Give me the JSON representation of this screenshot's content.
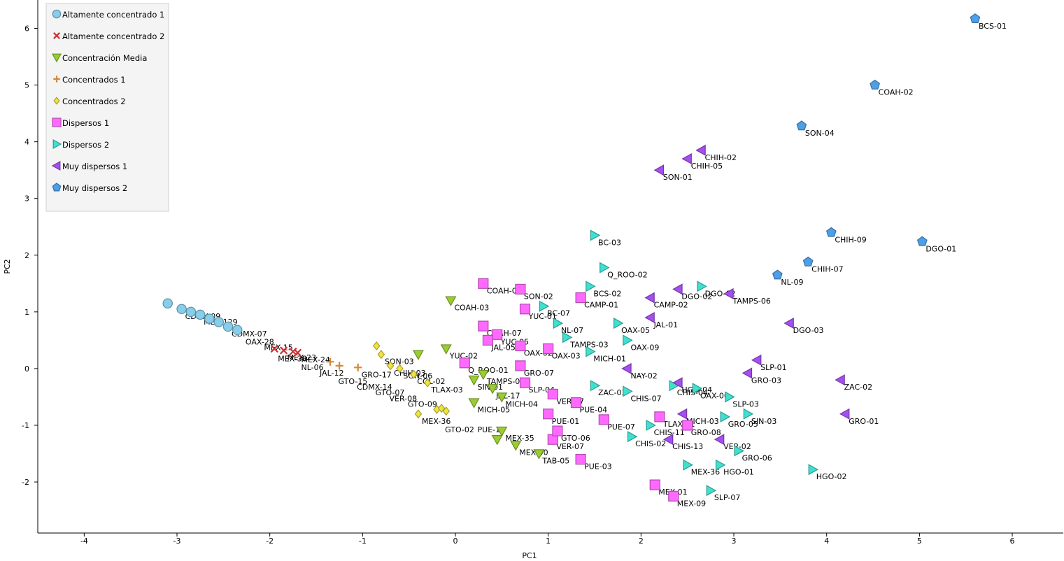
{
  "chart_data": {
    "type": "scatter",
    "xlabel": "PC1",
    "ylabel": "PC2",
    "xlim": [
      -4.5,
      6.55
    ],
    "ylim": [
      -2.9,
      6.5
    ],
    "xticks": [
      -4,
      -3,
      -2,
      -1,
      0,
      1,
      2,
      3,
      4,
      5,
      6
    ],
    "yticks": [
      -2,
      -1,
      0,
      1,
      2,
      3,
      4,
      5,
      6
    ],
    "grid": false,
    "legend_position": "top-left",
    "series": [
      {
        "name": "Altamente concentrado 1",
        "marker": "circle",
        "color": "#87ceeb",
        "points": [
          {
            "x": -3.1,
            "y": 1.15,
            "label": ""
          },
          {
            "x": -2.95,
            "y": 1.05,
            "label": "CDMX-09"
          },
          {
            "x": -2.85,
            "y": 1.0,
            "label": ""
          },
          {
            "x": -2.75,
            "y": 0.95,
            "label": "MEX-129"
          },
          {
            "x": -2.65,
            "y": 0.88,
            "label": ""
          },
          {
            "x": -2.55,
            "y": 0.82,
            "label": ""
          },
          {
            "x": -2.45,
            "y": 0.74,
            "label": "CDMX-07"
          },
          {
            "x": -2.35,
            "y": 0.68,
            "label": ""
          }
        ]
      },
      {
        "name": "Altamente concentrado 2",
        "marker": "x",
        "color": "#cc3333",
        "points": [
          {
            "x": -1.95,
            "y": 0.35,
            "label": ""
          },
          {
            "x": -1.85,
            "y": 0.32,
            "label": "MEX-23"
          },
          {
            "x": -1.75,
            "y": 0.3,
            "label": ""
          },
          {
            "x": -1.7,
            "y": 0.28,
            "label": "MEX-24"
          }
        ]
      },
      {
        "name": "Concentración Media",
        "marker": "triangle-down",
        "color": "#9acd32",
        "points": [
          {
            "x": -0.05,
            "y": 1.2,
            "label": "COAH-03"
          },
          {
            "x": -0.4,
            "y": 0.25,
            "label": ""
          },
          {
            "x": -0.1,
            "y": 0.35,
            "label": "YUC-02"
          },
          {
            "x": 0.3,
            "y": -0.1,
            "label": "TAMPS-05"
          },
          {
            "x": 0.2,
            "y": -0.2,
            "label": "SIN-01"
          },
          {
            "x": 0.4,
            "y": -0.35,
            "label": "JAL-17"
          },
          {
            "x": 0.5,
            "y": -0.5,
            "label": "MICH-04"
          },
          {
            "x": 0.2,
            "y": -0.6,
            "label": "MICH-05"
          },
          {
            "x": 0.5,
            "y": -1.1,
            "label": "MEX-35"
          },
          {
            "x": 0.65,
            "y": -1.35,
            "label": "MEX-40"
          },
          {
            "x": 0.9,
            "y": -1.5,
            "label": "TAB-05"
          },
          {
            "x": 0.45,
            "y": -1.25,
            "label": ""
          }
        ]
      },
      {
        "name": "Concentrados 1",
        "marker": "plus",
        "color": "#d2893a",
        "points": [
          {
            "x": -1.35,
            "y": 0.12,
            "label": ""
          },
          {
            "x": -1.25,
            "y": 0.05,
            "label": ""
          },
          {
            "x": -1.05,
            "y": 0.02,
            "label": "GRO-17"
          }
        ]
      },
      {
        "name": "Concentrados 2",
        "marker": "diamond",
        "color": "#f0e442",
        "points": [
          {
            "x": -0.85,
            "y": 0.4,
            "label": ""
          },
          {
            "x": -0.8,
            "y": 0.25,
            "label": "SON-03"
          },
          {
            "x": -0.7,
            "y": 0.05,
            "label": "CHIH-03"
          },
          {
            "x": -0.6,
            "y": 0.0,
            "label": "SON-06"
          },
          {
            "x": -0.45,
            "y": -0.1,
            "label": "COL-02"
          },
          {
            "x": -0.3,
            "y": -0.25,
            "label": "TLAX-03"
          },
          {
            "x": -0.4,
            "y": -0.8,
            "label": "MEX-36"
          },
          {
            "x": -0.2,
            "y": -0.72,
            "label": ""
          },
          {
            "x": -0.15,
            "y": -0.7,
            "label": ""
          },
          {
            "x": -0.1,
            "y": -0.75,
            "label": ""
          }
        ]
      },
      {
        "name": "Dispersos 1",
        "marker": "square",
        "color": "#ff69ff",
        "points": [
          {
            "x": 0.3,
            "y": 1.5,
            "label": "COAH-01"
          },
          {
            "x": 0.7,
            "y": 1.4,
            "label": "SON-02"
          },
          {
            "x": 0.75,
            "y": 1.05,
            "label": "YUC-01"
          },
          {
            "x": 1.35,
            "y": 1.25,
            "label": "CAMP-01"
          },
          {
            "x": 0.3,
            "y": 0.75,
            "label": "COAH-07"
          },
          {
            "x": 0.45,
            "y": 0.6,
            "label": "YUC-05"
          },
          {
            "x": 0.35,
            "y": 0.5,
            "label": "JAL-05"
          },
          {
            "x": 0.7,
            "y": 0.4,
            "label": "OAX-02"
          },
          {
            "x": 1.0,
            "y": 0.35,
            "label": "OAX-03"
          },
          {
            "x": 0.7,
            "y": 0.05,
            "label": "GRO-07"
          },
          {
            "x": 0.75,
            "y": -0.25,
            "label": "SLP-04"
          },
          {
            "x": 1.05,
            "y": -0.45,
            "label": "VER-17"
          },
          {
            "x": 1.3,
            "y": -0.6,
            "label": "PUE-04"
          },
          {
            "x": 1.0,
            "y": -0.8,
            "label": "PUE-01"
          },
          {
            "x": 1.6,
            "y": -0.9,
            "label": "PUE-07"
          },
          {
            "x": 1.05,
            "y": -1.25,
            "label": "VER-07"
          },
          {
            "x": 1.35,
            "y": -1.6,
            "label": "PUE-03"
          },
          {
            "x": 2.15,
            "y": -2.05,
            "label": "MEX-01"
          },
          {
            "x": 2.35,
            "y": -2.25,
            "label": "MEX-09"
          },
          {
            "x": 2.5,
            "y": -1.0,
            "label": "GRO-08"
          },
          {
            "x": 2.2,
            "y": -0.85,
            "label": "TLAX-01"
          },
          {
            "x": 0.1,
            "y": 0.1,
            "label": "Q_ROO-01"
          },
          {
            "x": 1.1,
            "y": -1.1,
            "label": "GTO-06"
          }
        ]
      },
      {
        "name": "Dispersos 2",
        "marker": "triangle-right",
        "color": "#40e0d0",
        "points": [
          {
            "x": 1.5,
            "y": 2.35,
            "label": "BC-03"
          },
          {
            "x": 1.6,
            "y": 1.78,
            "label": "Q_ROO-02"
          },
          {
            "x": 1.45,
            "y": 1.45,
            "label": "BCS-02"
          },
          {
            "x": 0.95,
            "y": 1.1,
            "label": "BC-07"
          },
          {
            "x": 1.1,
            "y": 0.8,
            "label": "NL-07"
          },
          {
            "x": 1.2,
            "y": 0.55,
            "label": "TAMPS-03"
          },
          {
            "x": 1.75,
            "y": 0.8,
            "label": "OAX-05"
          },
          {
            "x": 1.85,
            "y": 0.5,
            "label": "OAX-09"
          },
          {
            "x": 1.45,
            "y": 0.3,
            "label": "MICH-01"
          },
          {
            "x": 1.5,
            "y": -0.3,
            "label": "ZAC-03"
          },
          {
            "x": 1.85,
            "y": -0.4,
            "label": "CHIS-07"
          },
          {
            "x": 2.35,
            "y": -0.3,
            "label": "CHIS-04"
          },
          {
            "x": 2.6,
            "y": -0.35,
            "label": "OAX-06"
          },
          {
            "x": 2.95,
            "y": -0.5,
            "label": "SLP-03"
          },
          {
            "x": 3.15,
            "y": -0.8,
            "label": "SIN-03"
          },
          {
            "x": 2.9,
            "y": -0.85,
            "label": "GRO-05"
          },
          {
            "x": 1.9,
            "y": -1.2,
            "label": "CHIS-02"
          },
          {
            "x": 3.05,
            "y": -1.45,
            "label": "GRO-06"
          },
          {
            "x": 2.5,
            "y": -1.7,
            "label": "MEX-36"
          },
          {
            "x": 2.85,
            "y": -1.7,
            "label": "HGO-01"
          },
          {
            "x": 3.85,
            "y": -1.78,
            "label": "HGO-02"
          },
          {
            "x": 2.75,
            "y": -2.15,
            "label": "SLP-07"
          },
          {
            "x": 2.65,
            "y": 1.45,
            "label": "DGO-02"
          },
          {
            "x": 2.1,
            "y": -1.0,
            "label": "CHIS-11"
          }
        ]
      },
      {
        "name": "Muy dispersos 1",
        "marker": "triangle-left",
        "color": "#a64ff0",
        "points": [
          {
            "x": 2.65,
            "y": 3.85,
            "label": "CHIH-02"
          },
          {
            "x": 2.5,
            "y": 3.7,
            "label": "CHIH-05"
          },
          {
            "x": 2.2,
            "y": 3.5,
            "label": "SON-01"
          },
          {
            "x": 2.1,
            "y": 1.25,
            "label": "CAMP-02"
          },
          {
            "x": 2.4,
            "y": 1.4,
            "label": "DGO-02"
          },
          {
            "x": 2.95,
            "y": 1.32,
            "label": "TAMPS-06"
          },
          {
            "x": 2.1,
            "y": 0.9,
            "label": "JAL-01"
          },
          {
            "x": 3.6,
            "y": 0.8,
            "label": "DGO-03"
          },
          {
            "x": 3.25,
            "y": 0.15,
            "label": "SLP-01"
          },
          {
            "x": 3.15,
            "y": -0.08,
            "label": "GRO-03"
          },
          {
            "x": 4.15,
            "y": -0.2,
            "label": "ZAC-02"
          },
          {
            "x": 4.2,
            "y": -0.8,
            "label": "GRO-01"
          },
          {
            "x": 2.45,
            "y": -0.8,
            "label": "MICH-03"
          },
          {
            "x": 2.3,
            "y": -1.25,
            "label": "CHIS-13"
          },
          {
            "x": 2.85,
            "y": -1.25,
            "label": "VER-02"
          },
          {
            "x": 1.85,
            "y": 0.0,
            "label": "NAY-02"
          },
          {
            "x": 2.4,
            "y": -0.25,
            "label": "HGO-04"
          }
        ]
      },
      {
        "name": "Muy dispersos 2",
        "marker": "pentagon",
        "color": "#4d9fe8",
        "points": [
          {
            "x": 5.6,
            "y": 6.17,
            "label": "BCS-01"
          },
          {
            "x": 4.52,
            "y": 5.0,
            "label": "COAH-02"
          },
          {
            "x": 3.73,
            "y": 4.28,
            "label": "SON-04"
          },
          {
            "x": 4.05,
            "y": 2.4,
            "label": "CHIH-09"
          },
          {
            "x": 5.03,
            "y": 2.24,
            "label": "DGO-01"
          },
          {
            "x": 3.8,
            "y": 1.88,
            "label": "CHIH-07"
          },
          {
            "x": 3.47,
            "y": 1.65,
            "label": "NL-09"
          }
        ]
      },
      {
        "name": "",
        "marker": "none",
        "color": "#000000",
        "points": [
          {
            "x": -2.3,
            "y": 0.6,
            "label": "OAX-28"
          },
          {
            "x": -2.1,
            "y": 0.5,
            "label": "MEX-15"
          },
          {
            "x": -1.95,
            "y": 0.3,
            "label": "MEX-38"
          },
          {
            "x": -1.7,
            "y": 0.15,
            "label": "NL-06"
          },
          {
            "x": -1.5,
            "y": 0.05,
            "label": "JAL-12"
          },
          {
            "x": -1.3,
            "y": -0.1,
            "label": "GTO-15"
          },
          {
            "x": -1.1,
            "y": -0.2,
            "label": "CDMX-14"
          },
          {
            "x": -0.9,
            "y": -0.3,
            "label": "GTO-07"
          },
          {
            "x": -0.75,
            "y": -0.4,
            "label": "VER-08"
          },
          {
            "x": -0.55,
            "y": -0.5,
            "label": "GTO-09"
          },
          {
            "x": -0.15,
            "y": -0.95,
            "label": "GTO-02"
          },
          {
            "x": 0.2,
            "y": -0.95,
            "label": "PUE-12"
          }
        ]
      }
    ]
  }
}
